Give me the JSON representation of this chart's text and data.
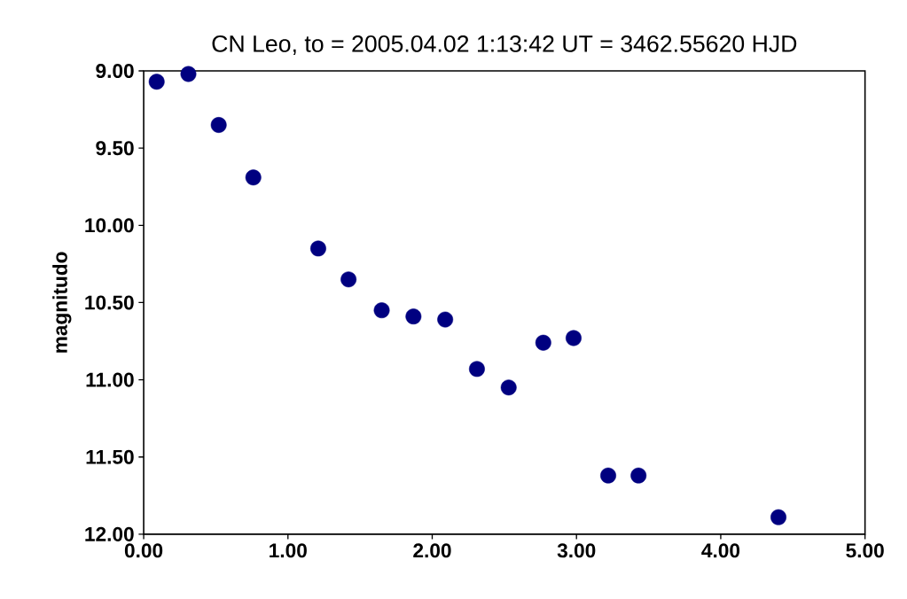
{
  "chart_data": {
    "type": "scatter",
    "title": "CN Leo, to = 2005.04.02 1:13:42 UT = 3462.55620 HJD",
    "ylabel": "magnitudo",
    "x": [
      0.09,
      0.31,
      0.52,
      0.76,
      1.21,
      1.42,
      1.65,
      1.87,
      2.09,
      2.31,
      2.53,
      2.77,
      2.98,
      3.22,
      3.43,
      4.4
    ],
    "values": [
      9.07,
      9.02,
      9.35,
      9.69,
      10.15,
      10.35,
      10.55,
      10.59,
      10.61,
      10.93,
      11.05,
      10.76,
      10.73,
      11.62,
      11.62,
      11.89
    ],
    "color": "#000080",
    "marker": "circle",
    "xlim": [
      0,
      5
    ],
    "xticks": [
      {
        "value": 0,
        "label": "0.00"
      },
      {
        "value": 1,
        "label": "1.00"
      },
      {
        "value": 2,
        "label": "2.00"
      },
      {
        "value": 3,
        "label": "3.00"
      },
      {
        "value": 4,
        "label": "4.00"
      },
      {
        "value": 5,
        "label": "5.00"
      }
    ],
    "ylim": [
      12,
      9
    ],
    "yticks": [
      {
        "value": 9,
        "label": "9.00"
      },
      {
        "value": 9.5,
        "label": "9.50"
      },
      {
        "value": 10,
        "label": "10.00"
      },
      {
        "value": 10.5,
        "label": "10.50"
      },
      {
        "value": 11,
        "label": "11.00"
      },
      {
        "value": 11.5,
        "label": "11.50"
      },
      {
        "value": 12,
        "label": "12.00"
      }
    ],
    "grid": false
  }
}
